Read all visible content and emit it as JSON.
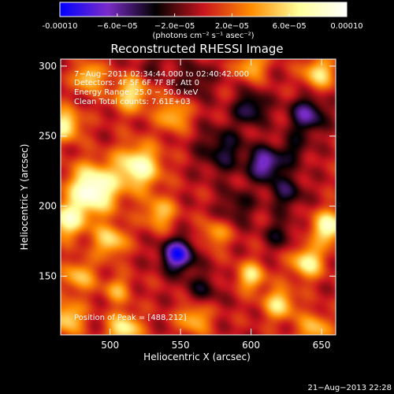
{
  "colorbar": {
    "ticks": [
      {
        "value": -0.0001,
        "label": "-0.00010"
      },
      {
        "value": -6e-05,
        "label": "−6.0e−05"
      },
      {
        "value": -2e-05,
        "label": "−2.0e−05"
      },
      {
        "value": 2e-05,
        "label": "2.0e−05"
      },
      {
        "value": 6e-05,
        "label": "6.0e−05"
      },
      {
        "value": 0.0001,
        "label": "0.00010"
      }
    ],
    "range": [
      -0.0001,
      0.0001
    ],
    "units": "(photons cm⁻² s⁻¹ asec⁻²)",
    "colors": [
      "#0000ff",
      "#7a2cc8",
      "#000000",
      "#c8141e",
      "#ff8c00",
      "#ffff9a",
      "#ffffff"
    ]
  },
  "chart_data": {
    "type": "heatmap",
    "title": "Reconstructed RHESSI Image",
    "xlabel": "Heliocentric X (arcsec)",
    "ylabel": "Heliocentric Y (arcsec)",
    "xlim": [
      465,
      660
    ],
    "ylim": [
      108,
      305
    ],
    "xticks": [
      500,
      550,
      600,
      650
    ],
    "yticks": [
      150,
      200,
      250,
      300
    ],
    "info_lines": [
      "7−Aug−2011 02:34:44.000  to 02:40:42.000",
      "Detectors: 4F 5F 6F 7F 8F, Att 0",
      "Energy Range: 25.0 − 50.0 keV",
      "Clean    Total counts: 7.61E+03"
    ],
    "peak_label": "Position of Peak = [488,212]",
    "peak": [
      488,
      212
    ],
    "sources": [
      {
        "x": 488,
        "y": 212,
        "value": 0.0001,
        "sigma": 12
      },
      {
        "x": 520,
        "y": 228,
        "value": 8e-05,
        "sigma": 11
      },
      {
        "x": 468,
        "y": 258,
        "value": 7e-05,
        "sigma": 8
      },
      {
        "x": 485,
        "y": 292,
        "value": 6e-05,
        "sigma": 7
      },
      {
        "x": 515,
        "y": 280,
        "value": 6e-05,
        "sigma": 9
      },
      {
        "x": 545,
        "y": 265,
        "value": 5e-05,
        "sigma": 8
      },
      {
        "x": 470,
        "y": 190,
        "value": 7e-05,
        "sigma": 9
      },
      {
        "x": 500,
        "y": 175,
        "value": 6e-05,
        "sigma": 8
      },
      {
        "x": 535,
        "y": 195,
        "value": 5e-05,
        "sigma": 8
      },
      {
        "x": 478,
        "y": 150,
        "value": 5e-05,
        "sigma": 8
      },
      {
        "x": 505,
        "y": 140,
        "value": 4e-05,
        "sigma": 7
      },
      {
        "x": 470,
        "y": 120,
        "value": 6e-05,
        "sigma": 8
      },
      {
        "x": 510,
        "y": 112,
        "value": 7e-05,
        "sigma": 8
      },
      {
        "x": 560,
        "y": 120,
        "value": 5e-05,
        "sigma": 8
      },
      {
        "x": 600,
        "y": 150,
        "value": 6e-05,
        "sigma": 7
      },
      {
        "x": 620,
        "y": 130,
        "value": 6e-05,
        "sigma": 8
      },
      {
        "x": 645,
        "y": 112,
        "value": 5e-05,
        "sigma": 8
      },
      {
        "x": 640,
        "y": 160,
        "value": 7e-05,
        "sigma": 8
      },
      {
        "x": 655,
        "y": 185,
        "value": 8e-05,
        "sigma": 8
      },
      {
        "x": 648,
        "y": 295,
        "value": 6e-05,
        "sigma": 8
      },
      {
        "x": 600,
        "y": 300,
        "value": 5e-05,
        "sigma": 7
      },
      {
        "x": 575,
        "y": 180,
        "value": 4e-05,
        "sigma": 7
      },
      {
        "x": 548,
        "y": 165,
        "value": -9e-05,
        "sigma": 8
      },
      {
        "x": 580,
        "y": 240,
        "value": -4e-05,
        "sigma": 12
      },
      {
        "x": 610,
        "y": 230,
        "value": -7e-05,
        "sigma": 8
      },
      {
        "x": 600,
        "y": 270,
        "value": -5e-05,
        "sigma": 8
      },
      {
        "x": 640,
        "y": 265,
        "value": -6e-05,
        "sigma": 9
      },
      {
        "x": 625,
        "y": 210,
        "value": -4e-05,
        "sigma": 9
      },
      {
        "x": 565,
        "y": 140,
        "value": -3e-05,
        "sigma": 9
      },
      {
        "x": 630,
        "y": 240,
        "value": -3e-05,
        "sigma": 8
      },
      {
        "x": 590,
        "y": 200,
        "value": -3e-05,
        "sigma": 9
      },
      {
        "x": 560,
        "y": 290,
        "value": -3e-05,
        "sigma": 9
      },
      {
        "x": 620,
        "y": 180,
        "value": -3e-05,
        "sigma": 8
      },
      {
        "x": 530,
        "y": 300,
        "value": -2e-05,
        "sigma": 8
      }
    ]
  },
  "footer": {
    "timestamp": "21−Aug−2013 22:28"
  }
}
